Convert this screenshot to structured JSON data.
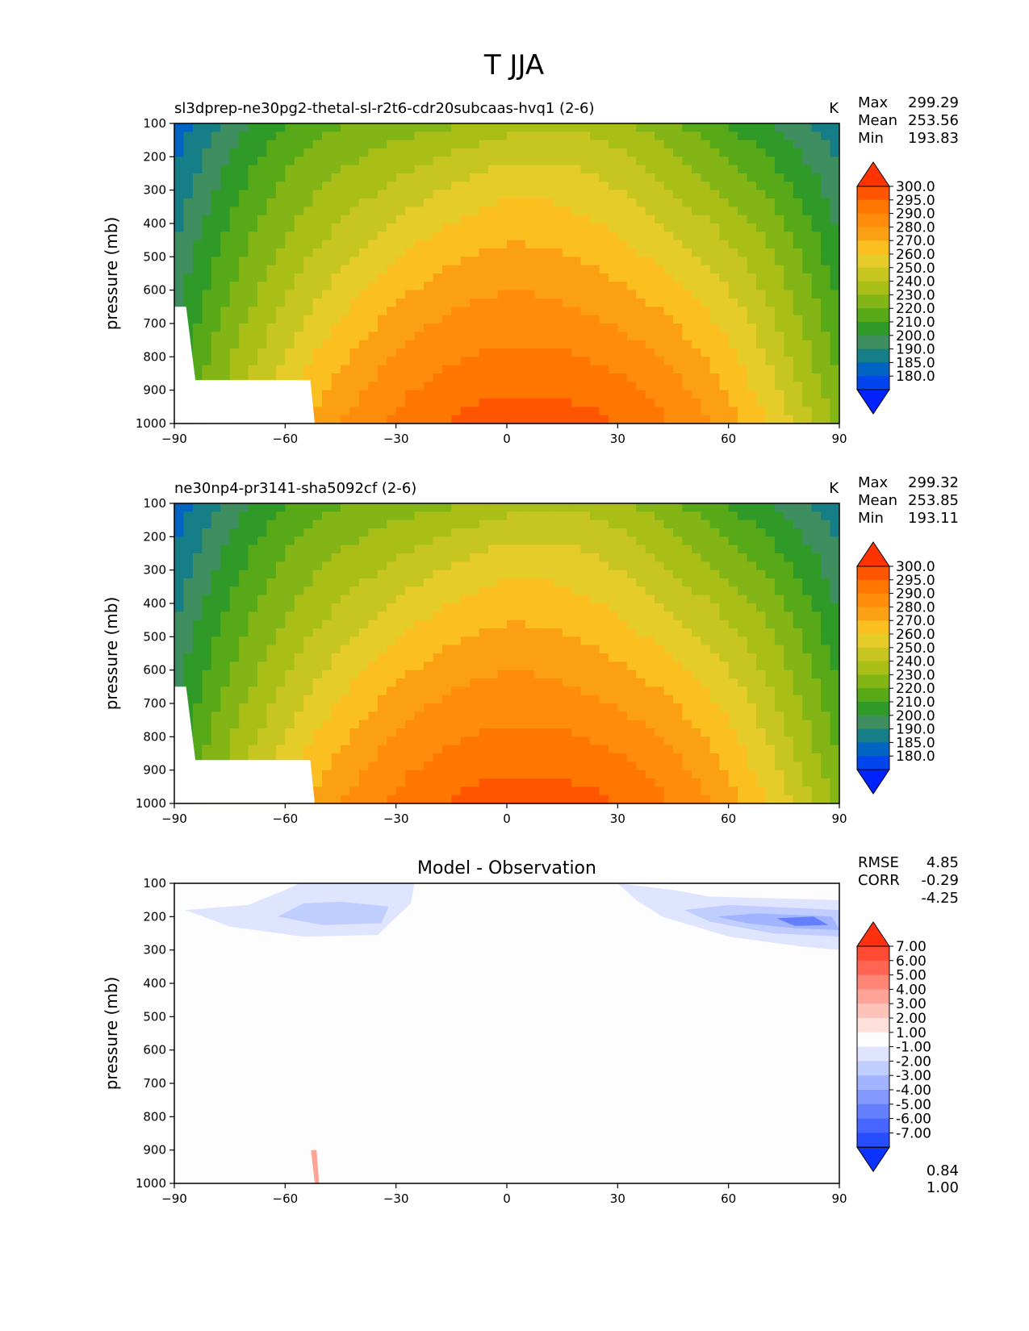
{
  "figure_title": "T JJA",
  "chart_data": [
    {
      "type": "contour",
      "title": "sl3dprep-ne30pg2-thetal-sl-r2t6-cdr20subcaas-hvq1 (2-6)",
      "units": "K",
      "ylabel": "pressure (mb)",
      "xlabel": "",
      "xlim": [
        -90,
        90
      ],
      "ylim": [
        1000,
        100
      ],
      "x_ticks": [
        "−90",
        "−60",
        "−30",
        "0",
        "30",
        "60",
        "90"
      ],
      "y_ticks": [
        "100",
        "200",
        "300",
        "400",
        "500",
        "600",
        "700",
        "800",
        "900",
        "1000"
      ],
      "stats": {
        "Max": "299.29",
        "Mean": "253.56",
        "Min": "193.83"
      },
      "levels": [
        "300.0",
        "295.0",
        "290.0",
        "280.0",
        "270.0",
        "260.0",
        "250.0",
        "240.0",
        "230.0",
        "220.0",
        "210.0",
        "200.0",
        "190.0",
        "185.0",
        "180.0"
      ],
      "colors": [
        "#ff3300",
        "#ff5500",
        "#ff7700",
        "#ff8d0b",
        "#fca013",
        "#fbbf1f",
        "#e6cc28",
        "#c7c621",
        "#a9bf17",
        "#82b515",
        "#58a918",
        "#2f9a27",
        "#3f8e5f",
        "#157e87",
        "#0064c3",
        "#0044ee",
        "#0022ff"
      ]
    },
    {
      "type": "contour",
      "title": "ne30np4-pr3141-sha5092cf (2-6)",
      "units": "K",
      "ylabel": "pressure (mb)",
      "xlabel": "",
      "xlim": [
        -90,
        90
      ],
      "ylim": [
        1000,
        100
      ],
      "x_ticks": [
        "−90",
        "−60",
        "−30",
        "0",
        "30",
        "60",
        "90"
      ],
      "y_ticks": [
        "100",
        "200",
        "300",
        "400",
        "500",
        "600",
        "700",
        "800",
        "900",
        "1000"
      ],
      "stats": {
        "Max": "299.32",
        "Mean": "253.85",
        "Min": "193.11"
      },
      "levels": [
        "300.0",
        "295.0",
        "290.0",
        "280.0",
        "270.0",
        "260.0",
        "250.0",
        "240.0",
        "230.0",
        "220.0",
        "210.0",
        "200.0",
        "190.0",
        "185.0",
        "180.0"
      ],
      "colors": [
        "#ff3300",
        "#ff5500",
        "#ff7700",
        "#ff8d0b",
        "#fca013",
        "#fbbf1f",
        "#e6cc28",
        "#c7c621",
        "#a9bf17",
        "#82b515",
        "#58a918",
        "#2f9a27",
        "#3f8e5f",
        "#157e87",
        "#0064c3",
        "#0044ee",
        "#0022ff"
      ]
    },
    {
      "type": "contour",
      "title": "Model - Observation",
      "units": "",
      "ylabel": "pressure (mb)",
      "xlabel": "",
      "xlim": [
        -90,
        90
      ],
      "ylim": [
        1000,
        100
      ],
      "x_ticks": [
        "−90",
        "−60",
        "−30",
        "0",
        "30",
        "60",
        "90"
      ],
      "y_ticks": [
        "100",
        "200",
        "300",
        "400",
        "500",
        "600",
        "700",
        "800",
        "900",
        "1000"
      ],
      "stats": {
        "Max": "4.85",
        "Mean": "-0.29",
        "Min": "-4.25"
      },
      "extra_stats": {
        "RMSE": "0.84",
        "CORR": "1.00"
      },
      "levels": [
        "7.00",
        "6.00",
        "5.00",
        "4.00",
        "3.00",
        "2.00",
        "1.00",
        "-1.00",
        "-2.00",
        "-3.00",
        "-4.00",
        "-5.00",
        "-6.00",
        "-7.00"
      ],
      "colors": [
        "#ff3010",
        "#ff4b33",
        "#ff6552",
        "#ff8677",
        "#ffa397",
        "#ffc2b9",
        "#ffe0da",
        "#fdfdfd",
        "#dfe5ff",
        "#c0cdff",
        "#a2b3ff",
        "#8399ff",
        "#6580ff",
        "#4666ff",
        "#284dff",
        "#0a33ff"
      ]
    }
  ]
}
